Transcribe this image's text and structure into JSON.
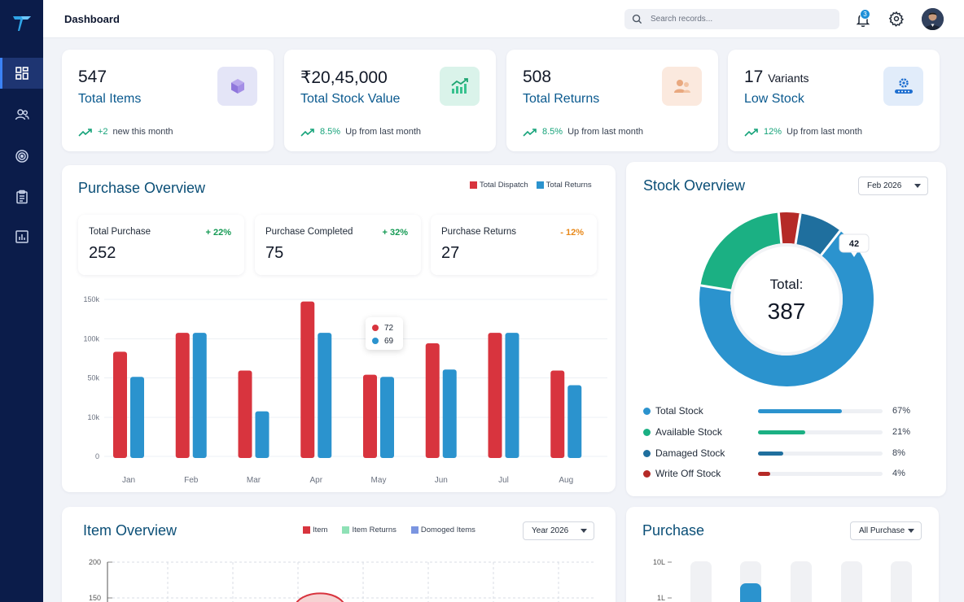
{
  "header": {
    "title": "Dashboard",
    "search_placeholder": "Search records...",
    "notification_count": "3"
  },
  "sidebar": {
    "items": [
      {
        "icon": "dashboard-icon",
        "active": true
      },
      {
        "icon": "users-icon",
        "active": false
      },
      {
        "icon": "target-icon",
        "active": false
      },
      {
        "icon": "clipboard-icon",
        "active": false
      },
      {
        "icon": "report-icon",
        "active": false
      }
    ]
  },
  "kpis": [
    {
      "value": "547",
      "value_suffix": "",
      "label": "Total Items",
      "change": "+2",
      "change_text": "new this month",
      "icon": "box-icon",
      "icon_bg": "#e4e5f7"
    },
    {
      "value": "₹20,45,000",
      "value_suffix": "",
      "label": "Total Stock Value",
      "change": "8.5%",
      "change_text": "Up from last month",
      "icon": "growth-chart-icon",
      "icon_bg": "#daf3ea"
    },
    {
      "value": "508",
      "value_suffix": "",
      "label": "Total Returns",
      "change": "8.5%",
      "change_text": "Up from last month",
      "icon": "people-icon",
      "icon_bg": "#fbe9de"
    },
    {
      "value": "17",
      "value_suffix": "Variants",
      "label": "Low Stock",
      "change": "12%",
      "change_text": "Up from last month",
      "icon": "settings-card-icon",
      "icon_bg": "#e1ecfa"
    }
  ],
  "purchase_overview": {
    "title": "Purchase Overview",
    "legend": [
      "Total Dispatch",
      "Total Returns"
    ],
    "stats": [
      {
        "label": "Total Purchase",
        "change": "+ 22%",
        "value": "252",
        "color": "#159a54"
      },
      {
        "label": "Purchase Completed",
        "change": "+ 32%",
        "value": "75",
        "color": "#159a54"
      },
      {
        "label": "Purchase Returns",
        "change": "- 12%",
        "value": "27",
        "color": "#e8891a"
      }
    ],
    "tooltip": {
      "dispatch": "72",
      "returns": "69"
    }
  },
  "chart_data": [
    {
      "type": "bar",
      "categories": [
        "Jan",
        "Feb",
        "Mar",
        "Apr",
        "May",
        "Jun",
        "Jul",
        "Aug"
      ],
      "series": [
        {
          "name": "Total Dispatch",
          "values": [
            100,
            118,
            82,
            148,
            78,
            108,
            118,
            82
          ],
          "color": "#d8343e"
        },
        {
          "name": "Total Returns",
          "values": [
            76,
            118,
            43,
            118,
            76,
            83,
            118,
            68
          ],
          "color": "#2b93ce"
        }
      ],
      "y_ticks": [
        "150k",
        "100k",
        "50k",
        "10k",
        "0"
      ],
      "ylim": [
        0,
        150
      ],
      "grid": true
    },
    {
      "type": "pie",
      "center_label": "Total:",
      "center_value": "387",
      "slices": [
        {
          "name": "Total Stock",
          "value": 67,
          "color": "#2b93ce"
        },
        {
          "name": "Available Stock",
          "value": 21,
          "color": "#1bb083"
        },
        {
          "name": "Write Off Stock",
          "value": 4,
          "color": "#b52a27"
        },
        {
          "name": "Damaged Stock",
          "value": 8,
          "color": "#1f6f9e"
        }
      ],
      "callout": "42"
    }
  ],
  "stock_overview": {
    "title": "Stock Overview",
    "period": "Feb 2026",
    "rows": [
      {
        "name": "Total Stock",
        "pct": "67%",
        "value": 0.67,
        "color": "#2b93ce"
      },
      {
        "name": "Available Stock",
        "pct": "21%",
        "value": 0.38,
        "color": "#1bb083"
      },
      {
        "name": "Damaged Stock",
        "pct": "8%",
        "value": 0.2,
        "color": "#1f6f9e"
      },
      {
        "name": "Write Off Stock",
        "pct": "4%",
        "value": 0.1,
        "color": "#b52a27"
      }
    ]
  },
  "item_overview": {
    "title": "Item Overview",
    "legend": [
      {
        "name": "Item",
        "color": "#d8343e"
      },
      {
        "name": "Item Returns",
        "color": "#8fe1b6"
      },
      {
        "name": "Domoged Items",
        "color": "#7b95e0"
      }
    ],
    "period": "Year 2026",
    "y_ticks": [
      "200",
      "150"
    ]
  },
  "purchase": {
    "title": "Purchase",
    "filter": "All Purchase",
    "y_ticks": [
      "10L",
      "1L"
    ]
  }
}
